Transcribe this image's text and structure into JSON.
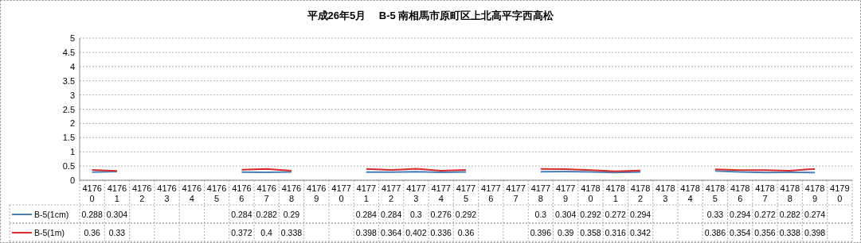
{
  "chart_data": {
    "type": "line",
    "title": "平成26年5月　 B-5 南相馬市原町区上北高平字西高松",
    "categories": [
      "41760",
      "41761",
      "41762",
      "41763",
      "41764",
      "41765",
      "41766",
      "41767",
      "41768",
      "41769",
      "41770",
      "41771",
      "41772",
      "41773",
      "41774",
      "41775",
      "41776",
      "41777",
      "41778",
      "41779",
      "41780",
      "41781",
      "41782",
      "41783",
      "41784",
      "41785",
      "41786",
      "41787",
      "41788",
      "41789",
      "41790"
    ],
    "series": [
      {
        "name": "B-5(1cm)",
        "color": "#4a7ebb",
        "values": [
          0.288,
          0.304,
          null,
          null,
          null,
          null,
          0.284,
          0.282,
          0.29,
          null,
          null,
          0.284,
          0.284,
          0.3,
          0.276,
          0.292,
          null,
          null,
          0.3,
          0.304,
          0.292,
          0.272,
          0.294,
          null,
          null,
          0.33,
          0.294,
          0.272,
          0.282,
          0.274,
          null
        ]
      },
      {
        "name": "B-5(1m)",
        "color": "#d92a2a",
        "values": [
          0.36,
          0.33,
          null,
          null,
          null,
          null,
          0.372,
          0.4,
          0.338,
          null,
          null,
          0.398,
          0.364,
          0.402,
          0.336,
          0.36,
          null,
          null,
          0.396,
          0.39,
          0.358,
          0.316,
          0.342,
          null,
          null,
          0.386,
          0.354,
          0.356,
          0.338,
          0.398,
          null
        ]
      }
    ],
    "ylim": [
      0,
      5
    ],
    "yticks": [
      0,
      0.5,
      1,
      1.5,
      2,
      2.5,
      3,
      3.5,
      4,
      4.5,
      5
    ],
    "grid": "y",
    "data_labels": true,
    "legend": "bottom left",
    "marker": "none",
    "line_style": "solid"
  }
}
